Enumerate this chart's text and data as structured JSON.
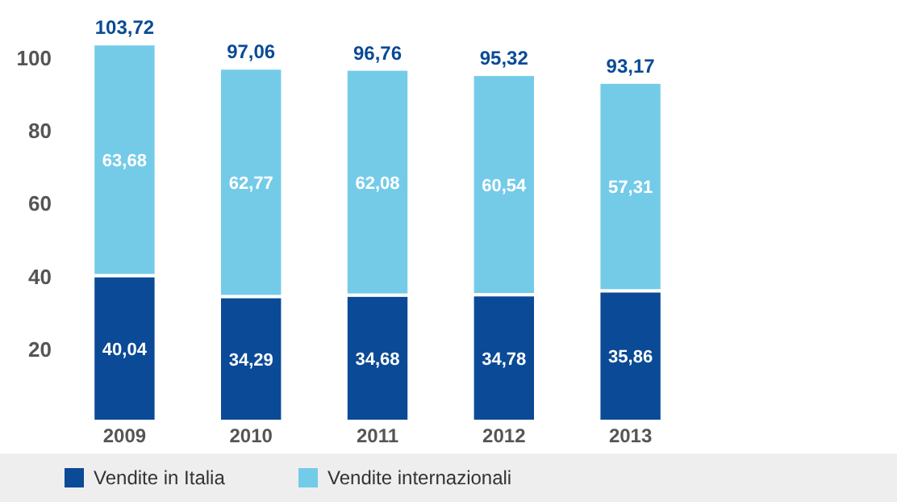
{
  "chart_data": {
    "type": "bar",
    "stacked": true,
    "categories": [
      "2009",
      "2010",
      "2011",
      "2012",
      "2013"
    ],
    "series": [
      {
        "name": "Vendite in Italia",
        "color": "#0a4a96",
        "values": [
          40.04,
          34.29,
          34.68,
          34.78,
          35.86
        ],
        "value_labels": [
          "40,04",
          "34,29",
          "34,68",
          "34,78",
          "35,86"
        ]
      },
      {
        "name": "Vendite internazionali",
        "color": "#74cbe8",
        "values": [
          63.68,
          62.77,
          62.08,
          60.54,
          57.31
        ],
        "value_labels": [
          "63,68",
          "62,77",
          "62,08",
          "60,54",
          "57,31"
        ]
      }
    ],
    "totals": [
      "103,72",
      "97,06",
      "96,76",
      "95,32",
      "93,17"
    ],
    "ylim": [
      0,
      106
    ],
    "yticks": [
      20,
      40,
      60,
      80,
      100
    ],
    "grid": false,
    "legend": "bottom"
  }
}
